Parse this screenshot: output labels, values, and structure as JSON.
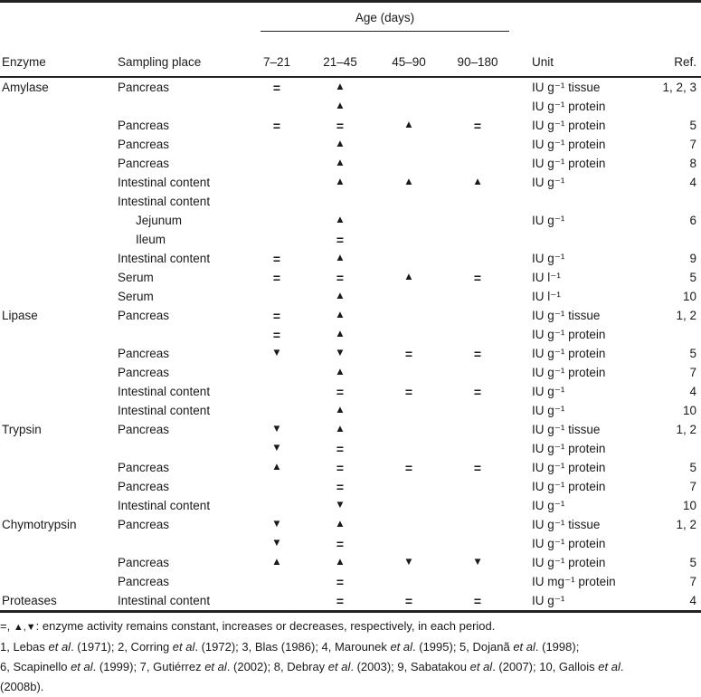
{
  "header": {
    "age_spanner": "Age (days)",
    "enzyme": "Enzyme",
    "sampling_place": "Sampling place",
    "age_cols": [
      "7–21",
      "21–45",
      "45–90",
      "90–180"
    ],
    "unit": "Unit",
    "ref": "Ref."
  },
  "symbols_legend": {
    "constant": "=",
    "increase": "▲",
    "decrease": "▼"
  },
  "rows": [
    {
      "enzyme": "Amylase",
      "place": "Pancreas",
      "indent": false,
      "symbols": [
        "=",
        "▲",
        "",
        ""
      ],
      "unit": "IU g⁻¹ tissue",
      "ref": "1, 2, 3"
    },
    {
      "enzyme": "",
      "place": "",
      "indent": false,
      "symbols": [
        "",
        "▲",
        "",
        ""
      ],
      "unit": "IU g⁻¹ protein",
      "ref": ""
    },
    {
      "enzyme": "",
      "place": "Pancreas",
      "indent": false,
      "symbols": [
        "=",
        "=",
        "▲",
        "="
      ],
      "unit": "IU g⁻¹ protein",
      "ref": "5"
    },
    {
      "enzyme": "",
      "place": "Pancreas",
      "indent": false,
      "symbols": [
        "",
        "▲",
        "",
        ""
      ],
      "unit": "IU g⁻¹ protein",
      "ref": "7"
    },
    {
      "enzyme": "",
      "place": "Pancreas",
      "indent": false,
      "symbols": [
        "",
        "▲",
        "",
        ""
      ],
      "unit": "IU g⁻¹ protein",
      "ref": "8"
    },
    {
      "enzyme": "",
      "place": "Intestinal content",
      "indent": false,
      "symbols": [
        "",
        "▲",
        "▲",
        "▲"
      ],
      "unit": "IU g⁻¹",
      "ref": "4"
    },
    {
      "enzyme": "",
      "place": "Intestinal content",
      "indent": false,
      "symbols": [
        "",
        "",
        "",
        ""
      ],
      "unit": "",
      "ref": ""
    },
    {
      "enzyme": "",
      "place": "Jejunum",
      "indent": true,
      "symbols": [
        "",
        "▲",
        "",
        ""
      ],
      "unit": "IU g⁻¹",
      "ref": "6"
    },
    {
      "enzyme": "",
      "place": "Ileum",
      "indent": true,
      "symbols": [
        "",
        "=",
        "",
        ""
      ],
      "unit": "",
      "ref": ""
    },
    {
      "enzyme": "",
      "place": "Intestinal content",
      "indent": false,
      "symbols": [
        "=",
        "▲",
        "",
        ""
      ],
      "unit": "IU g⁻¹",
      "ref": "9"
    },
    {
      "enzyme": "",
      "place": "Serum",
      "indent": false,
      "symbols": [
        "=",
        "=",
        "▲",
        "="
      ],
      "unit": "IU l⁻¹",
      "ref": "5"
    },
    {
      "enzyme": "",
      "place": "Serum",
      "indent": false,
      "symbols": [
        "",
        "▲",
        "",
        ""
      ],
      "unit": "IU l⁻¹",
      "ref": "10"
    },
    {
      "enzyme": "Lipase",
      "place": "Pancreas",
      "indent": false,
      "symbols": [
        "=",
        "▲",
        "",
        ""
      ],
      "unit": "IU g⁻¹ tissue",
      "ref": "1, 2"
    },
    {
      "enzyme": "",
      "place": "",
      "indent": false,
      "symbols": [
        "=",
        "▲",
        "",
        ""
      ],
      "unit": "IU g⁻¹ protein",
      "ref": ""
    },
    {
      "enzyme": "",
      "place": "Pancreas",
      "indent": false,
      "symbols": [
        "▼",
        "▼",
        "=",
        "="
      ],
      "unit": "IU g⁻¹ protein",
      "ref": "5"
    },
    {
      "enzyme": "",
      "place": "Pancreas",
      "indent": false,
      "symbols": [
        "",
        "▲",
        "",
        ""
      ],
      "unit": "IU g⁻¹ protein",
      "ref": "7"
    },
    {
      "enzyme": "",
      "place": "Intestinal content",
      "indent": false,
      "symbols": [
        "",
        "=",
        "=",
        "="
      ],
      "unit": "IU g⁻¹",
      "ref": "4"
    },
    {
      "enzyme": "",
      "place": "Intestinal content",
      "indent": false,
      "symbols": [
        "",
        "▲",
        "",
        ""
      ],
      "unit": "IU g⁻¹",
      "ref": "10"
    },
    {
      "enzyme": "Trypsin",
      "place": "Pancreas",
      "indent": false,
      "symbols": [
        "▼",
        "▲",
        "",
        ""
      ],
      "unit": "IU g⁻¹ tissue",
      "ref": "1, 2"
    },
    {
      "enzyme": "",
      "place": "",
      "indent": false,
      "symbols": [
        "▼",
        "=",
        "",
        ""
      ],
      "unit": "IU g⁻¹ protein",
      "ref": ""
    },
    {
      "enzyme": "",
      "place": "Pancreas",
      "indent": false,
      "symbols": [
        "▲",
        "=",
        "=",
        "="
      ],
      "unit": "IU g⁻¹ protein",
      "ref": "5"
    },
    {
      "enzyme": "",
      "place": "Pancreas",
      "indent": false,
      "symbols": [
        "",
        "=",
        "",
        ""
      ],
      "unit": "IU g⁻¹ protein",
      "ref": "7"
    },
    {
      "enzyme": "",
      "place": "Intestinal content",
      "indent": false,
      "symbols": [
        "",
        "▼",
        "",
        ""
      ],
      "unit": "IU g⁻¹",
      "ref": "10"
    },
    {
      "enzyme": "Chymotrypsin",
      "place": "Pancreas",
      "indent": false,
      "symbols": [
        "▼",
        "▲",
        "",
        ""
      ],
      "unit": "IU g⁻¹ tissue",
      "ref": "1, 2"
    },
    {
      "enzyme": "",
      "place": "",
      "indent": false,
      "symbols": [
        "▼",
        "=",
        "",
        ""
      ],
      "unit": "IU g⁻¹ protein",
      "ref": ""
    },
    {
      "enzyme": "",
      "place": "Pancreas",
      "indent": false,
      "symbols": [
        "▲",
        "▲",
        "▼",
        "▼"
      ],
      "unit": "IU g⁻¹ protein",
      "ref": "5"
    },
    {
      "enzyme": "",
      "place": "Pancreas",
      "indent": false,
      "symbols": [
        "",
        "=",
        "",
        ""
      ],
      "unit": "IU mg⁻¹ protein",
      "ref": "7"
    },
    {
      "enzyme": "Proteases",
      "place": "Intestinal content",
      "indent": false,
      "symbols": [
        "",
        "=",
        "=",
        "="
      ],
      "unit": "IU g⁻¹",
      "ref": "4"
    }
  ],
  "footnotes": [
    [
      {
        "t": "=, "
      },
      {
        "t": "▲,▼",
        "sym": true
      },
      {
        "t": ": enzyme activity remains constant, increases or decreases, respectively, in each period."
      }
    ],
    [
      {
        "t": "1, Lebas "
      },
      {
        "t": "et al",
        "i": true
      },
      {
        "t": ". (1971); 2, Corring "
      },
      {
        "t": "et al",
        "i": true
      },
      {
        "t": ". (1972); 3, Blas (1986); 4, Marounek "
      },
      {
        "t": "et al",
        "i": true
      },
      {
        "t": ". (1995); 5, Dojanã "
      },
      {
        "t": "et al",
        "i": true
      },
      {
        "t": ". (1998);"
      }
    ],
    [
      {
        "t": "6, Scapinello "
      },
      {
        "t": "et al",
        "i": true
      },
      {
        "t": ". (1999); 7, Gutiérrez "
      },
      {
        "t": "et al",
        "i": true
      },
      {
        "t": ". (2002); 8, Debray "
      },
      {
        "t": "et al",
        "i": true
      },
      {
        "t": ". (2003); 9, Sabatakou "
      },
      {
        "t": "et al",
        "i": true
      },
      {
        "t": ". (2007); 10, Gallois "
      },
      {
        "t": "et al",
        "i": true
      },
      {
        "t": "."
      }
    ],
    [
      {
        "t": "(2008b)."
      }
    ]
  ],
  "colors": {
    "text": "#1a1a1a",
    "rule": "#222222",
    "background": "#ffffff"
  }
}
